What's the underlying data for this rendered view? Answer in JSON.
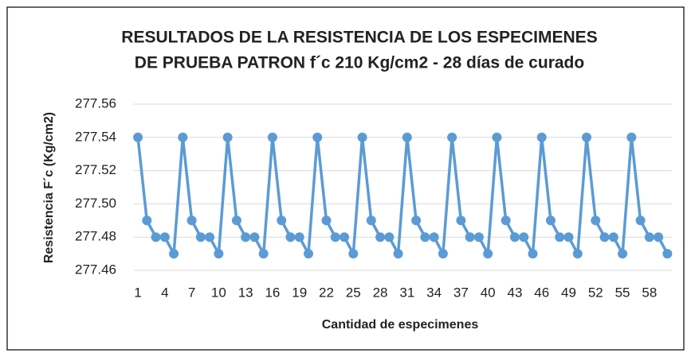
{
  "chart_data": {
    "type": "line",
    "title": [
      "RESULTADOS DE LA RESISTENCIA DE LOS ESPECIMENES",
      "DE PRUEBA PATRON f´c 210 Kg/cm2 - 28 días de curado"
    ],
    "x_label": "Cantidad de especimenes",
    "y_label": "Resistencia F´c (Kg/cm2)",
    "categories": [
      1,
      null,
      null,
      4,
      null,
      null,
      7,
      null,
      null,
      10,
      null,
      null,
      13,
      null,
      null,
      16,
      null,
      null,
      19,
      null,
      null,
      22,
      null,
      null,
      25,
      null,
      null,
      28,
      null,
      null,
      31,
      null,
      null,
      34,
      null,
      null,
      37,
      null,
      null,
      40,
      null,
      null,
      43,
      null,
      null,
      46,
      null,
      null,
      49,
      null,
      null,
      52,
      null,
      null,
      55,
      null,
      null,
      58,
      null,
      null
    ],
    "series": [
      {
        "name": "Resistencia",
        "color": "#5b9bd5",
        "values": [
          277.54,
          277.49,
          277.48,
          277.48,
          277.47,
          277.54,
          277.49,
          277.48,
          277.48,
          277.47,
          277.54,
          277.49,
          277.48,
          277.48,
          277.47,
          277.54,
          277.49,
          277.48,
          277.48,
          277.47,
          277.54,
          277.49,
          277.48,
          277.48,
          277.47,
          277.54,
          277.49,
          277.48,
          277.48,
          277.47,
          277.54,
          277.49,
          277.48,
          277.48,
          277.47,
          277.54,
          277.49,
          277.48,
          277.48,
          277.47,
          277.54,
          277.49,
          277.48,
          277.48,
          277.47,
          277.54,
          277.49,
          277.48,
          277.48,
          277.47,
          277.54,
          277.49,
          277.48,
          277.48,
          277.47,
          277.54,
          277.49,
          277.48,
          277.48,
          277.47
        ]
      }
    ],
    "ylim": [
      277.46,
      277.56
    ],
    "yticks": [
      277.46,
      277.48,
      {
        "value": 277.5,
        "label": "277.50"
      },
      277.52,
      277.54,
      277.56
    ],
    "grid": true
  }
}
